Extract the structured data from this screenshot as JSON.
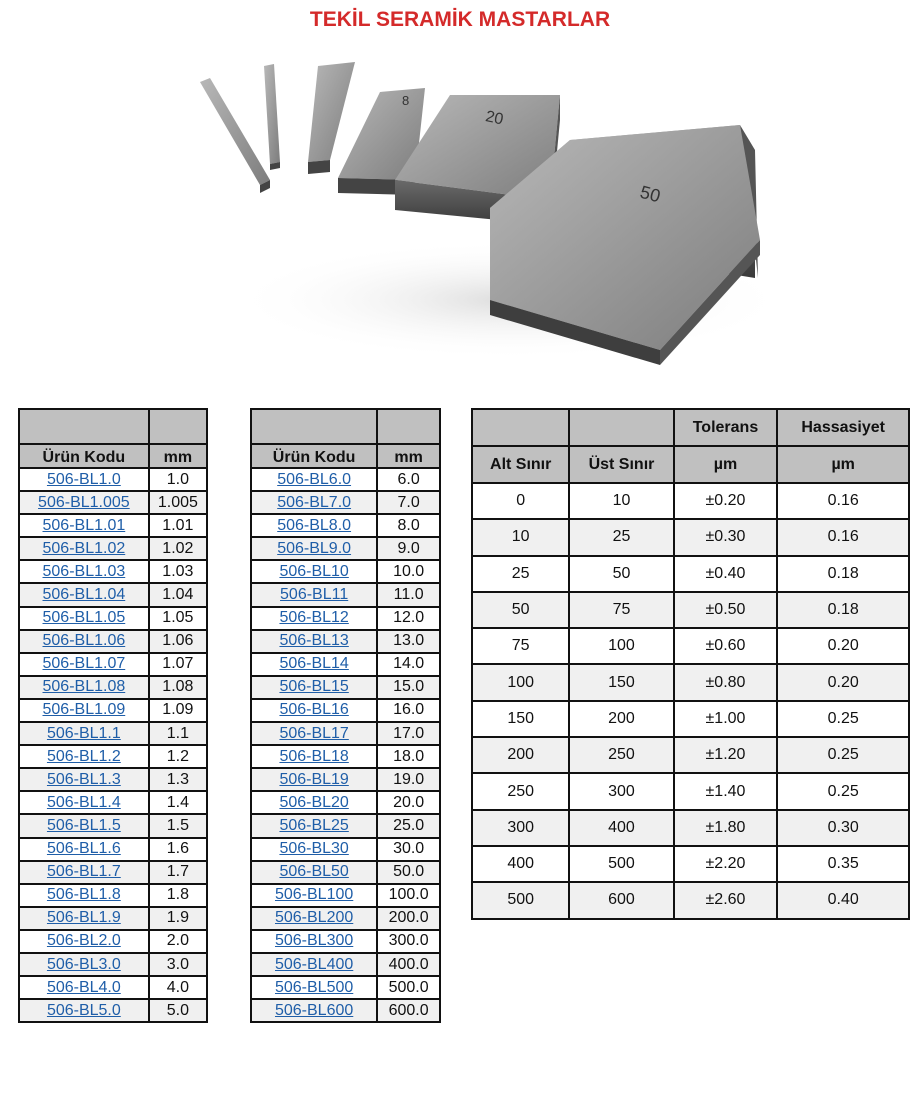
{
  "title": "TEKİL SERAMİK MASTARLAR",
  "photo": {
    "block_labels": [
      "8",
      "20",
      "50"
    ]
  },
  "colors": {
    "title": "#d42a2a",
    "link": "#1f5ea8",
    "header_bg": "#c0c0c0",
    "alt_row": "#f0f0f0"
  },
  "table1": {
    "headers": [
      "Ürün Kodu",
      "mm"
    ],
    "rows": [
      [
        "506-BL1.0",
        "1.0"
      ],
      [
        "506-BL1.005",
        "1.005"
      ],
      [
        "506-BL1.01",
        "1.01"
      ],
      [
        "506-BL1.02",
        "1.02"
      ],
      [
        "506-BL1.03",
        "1.03"
      ],
      [
        "506-BL1.04",
        "1.04"
      ],
      [
        "506-BL1.05",
        "1.05"
      ],
      [
        "506-BL1.06",
        "1.06"
      ],
      [
        "506-BL1.07",
        "1.07"
      ],
      [
        "506-BL1.08",
        "1.08"
      ],
      [
        "506-BL1.09",
        "1.09"
      ],
      [
        "506-BL1.1",
        "1.1"
      ],
      [
        "506-BL1.2",
        "1.2"
      ],
      [
        "506-BL1.3",
        "1.3"
      ],
      [
        "506-BL1.4",
        "1.4"
      ],
      [
        "506-BL1.5",
        "1.5"
      ],
      [
        "506-BL1.6",
        "1.6"
      ],
      [
        "506-BL1.7",
        "1.7"
      ],
      [
        "506-BL1.8",
        "1.8"
      ],
      [
        "506-BL1.9",
        "1.9"
      ],
      [
        "506-BL2.0",
        "2.0"
      ],
      [
        "506-BL3.0",
        "3.0"
      ],
      [
        "506-BL4.0",
        "4.0"
      ],
      [
        "506-BL5.0",
        "5.0"
      ]
    ]
  },
  "table2": {
    "headers": [
      "Ürün Kodu",
      "mm"
    ],
    "rows": [
      [
        "506-BL6.0",
        "6.0"
      ],
      [
        "506-BL7.0",
        "7.0"
      ],
      [
        "506-BL8.0",
        "8.0"
      ],
      [
        "506-BL9.0",
        "9.0"
      ],
      [
        "506-BL10",
        "10.0"
      ],
      [
        "506-BL11",
        "11.0"
      ],
      [
        "506-BL12",
        "12.0"
      ],
      [
        "506-BL13",
        "13.0"
      ],
      [
        "506-BL14",
        "14.0"
      ],
      [
        "506-BL15",
        "15.0"
      ],
      [
        "506-BL16",
        "16.0"
      ],
      [
        "506-BL17",
        "17.0"
      ],
      [
        "506-BL18",
        "18.0"
      ],
      [
        "506-BL19",
        "19.0"
      ],
      [
        "506-BL20",
        "20.0"
      ],
      [
        "506-BL25",
        "25.0"
      ],
      [
        "506-BL30",
        "30.0"
      ],
      [
        "506-BL50",
        "50.0"
      ],
      [
        "506-BL100",
        "100.0"
      ],
      [
        "506-BL200",
        "200.0"
      ],
      [
        "506-BL300",
        "300.0"
      ],
      [
        "506-BL400",
        "400.0"
      ],
      [
        "506-BL500",
        "500.0"
      ],
      [
        "506-BL600",
        "600.0"
      ]
    ]
  },
  "table3": {
    "headers_top": [
      "",
      "",
      "Tolerans",
      "Hassasiyet"
    ],
    "headers": [
      "Alt Sınır",
      "Üst Sınır",
      "µm",
      "µm"
    ],
    "rows": [
      [
        "0",
        "10",
        "±0.20",
        "0.16"
      ],
      [
        "10",
        "25",
        "±0.30",
        "0.16"
      ],
      [
        "25",
        "50",
        "±0.40",
        "0.18"
      ],
      [
        "50",
        "75",
        "±0.50",
        "0.18"
      ],
      [
        "75",
        "100",
        "±0.60",
        "0.20"
      ],
      [
        "100",
        "150",
        "±0.80",
        "0.20"
      ],
      [
        "150",
        "200",
        "±1.00",
        "0.25"
      ],
      [
        "200",
        "250",
        "±1.20",
        "0.25"
      ],
      [
        "250",
        "300",
        "±1.40",
        "0.25"
      ],
      [
        "300",
        "400",
        "±1.80",
        "0.30"
      ],
      [
        "400",
        "500",
        "±2.20",
        "0.35"
      ],
      [
        "500",
        "600",
        "±2.60",
        "0.40"
      ]
    ]
  }
}
